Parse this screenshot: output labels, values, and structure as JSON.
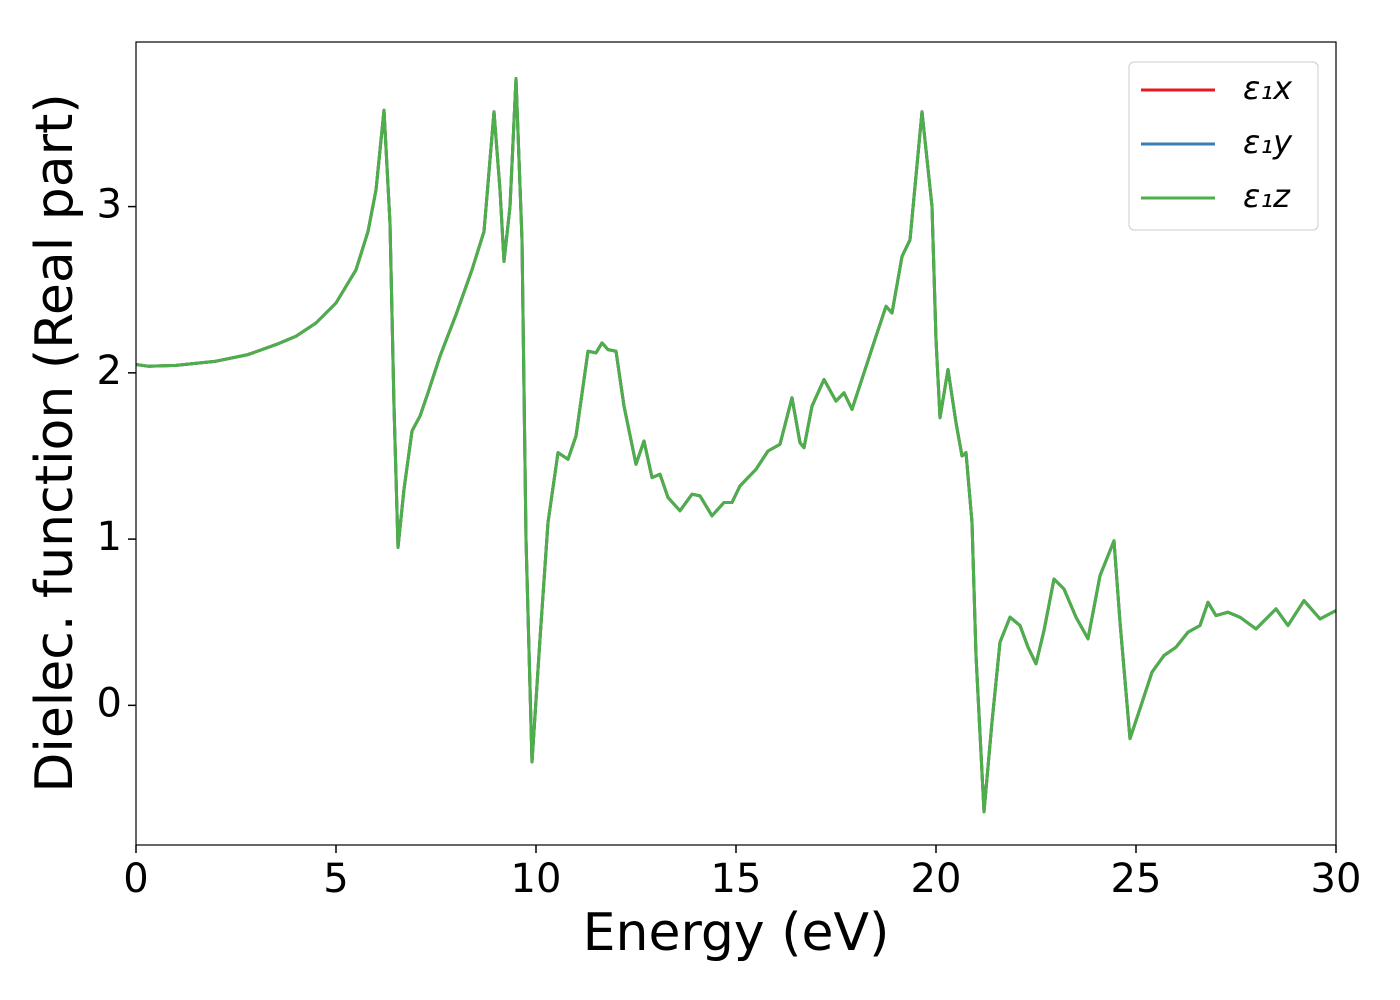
{
  "chart_data": {
    "type": "line",
    "x_label": "Energy (eV)",
    "y_label": "Dielec. function (Real part)",
    "x": [
      0,
      0.3,
      1,
      2,
      2.8,
      3.5,
      4,
      4.5,
      5,
      5.5,
      5.8,
      6.0,
      6.2,
      6.35,
      6.45,
      6.55,
      6.7,
      6.9,
      7.1,
      7.3,
      7.6,
      8.0,
      8.4,
      8.7,
      8.95,
      9.1,
      9.2,
      9.35,
      9.5,
      9.65,
      9.75,
      9.9,
      10.1,
      10.3,
      10.55,
      10.8,
      11.0,
      11.3,
      11.5,
      11.65,
      11.8,
      12.0,
      12.2,
      12.5,
      12.7,
      12.9,
      13.1,
      13.3,
      13.6,
      13.9,
      14.1,
      14.4,
      14.7,
      14.9,
      15.1,
      15.5,
      15.8,
      16.1,
      16.4,
      16.6,
      16.7,
      16.9,
      17.2,
      17.5,
      17.7,
      17.9,
      18.2,
      18.5,
      18.75,
      18.9,
      19.15,
      19.35,
      19.65,
      19.9,
      20.0,
      20.1,
      20.3,
      20.5,
      20.65,
      20.75,
      20.9,
      21.0,
      21.2,
      21.4,
      21.6,
      21.85,
      22.1,
      22.3,
      22.5,
      22.7,
      22.95,
      23.2,
      23.5,
      23.8,
      24.1,
      24.45,
      24.6,
      24.85,
      25.1,
      25.4,
      25.7,
      26.0,
      26.3,
      26.6,
      26.8,
      27.0,
      27.3,
      27.6,
      28.0,
      28.5,
      28.8,
      29.2,
      29.6,
      30.0
    ],
    "series": [
      {
        "name": "ε₁x",
        "color": "#e41a1c",
        "values": [
          2.05,
          2.04,
          2.045,
          2.07,
          2.11,
          2.17,
          2.22,
          2.3,
          2.42,
          2.62,
          2.85,
          3.1,
          3.58,
          2.9,
          1.8,
          0.95,
          1.3,
          1.65,
          1.74,
          1.88,
          2.1,
          2.35,
          2.62,
          2.85,
          3.57,
          3.1,
          2.67,
          3.0,
          3.77,
          2.8,
          1.0,
          -0.34,
          0.4,
          1.1,
          1.52,
          1.48,
          1.62,
          2.13,
          2.12,
          2.18,
          2.14,
          2.13,
          1.8,
          1.45,
          1.59,
          1.37,
          1.39,
          1.25,
          1.17,
          1.27,
          1.26,
          1.14,
          1.22,
          1.22,
          1.32,
          1.42,
          1.53,
          1.57,
          1.85,
          1.58,
          1.55,
          1.8,
          1.96,
          1.83,
          1.88,
          1.78,
          2.0,
          2.22,
          2.4,
          2.36,
          2.7,
          2.8,
          3.57,
          3.0,
          2.2,
          1.73,
          2.02,
          1.7,
          1.5,
          1.52,
          1.1,
          0.3,
          -0.64,
          -0.1,
          0.38,
          0.53,
          0.48,
          0.35,
          0.25,
          0.45,
          0.76,
          0.7,
          0.53,
          0.4,
          0.78,
          0.99,
          0.5,
          -0.2,
          -0.02,
          0.2,
          0.3,
          0.35,
          0.44,
          0.48,
          0.62,
          0.54,
          0.56,
          0.53,
          0.46,
          0.58,
          0.48,
          0.63,
          0.52,
          0.57
        ]
      },
      {
        "name": "ε₁y",
        "color": "#377eb8",
        "values": [
          2.05,
          2.04,
          2.045,
          2.07,
          2.11,
          2.17,
          2.22,
          2.3,
          2.42,
          2.62,
          2.85,
          3.1,
          3.58,
          2.9,
          1.8,
          0.95,
          1.3,
          1.65,
          1.74,
          1.88,
          2.1,
          2.35,
          2.62,
          2.85,
          3.57,
          3.1,
          2.67,
          3.0,
          3.77,
          2.8,
          1.0,
          -0.34,
          0.4,
          1.1,
          1.52,
          1.48,
          1.62,
          2.13,
          2.12,
          2.18,
          2.14,
          2.13,
          1.8,
          1.45,
          1.59,
          1.37,
          1.39,
          1.25,
          1.17,
          1.27,
          1.26,
          1.14,
          1.22,
          1.22,
          1.32,
          1.42,
          1.53,
          1.57,
          1.85,
          1.58,
          1.55,
          1.8,
          1.96,
          1.83,
          1.88,
          1.78,
          2.0,
          2.22,
          2.4,
          2.36,
          2.7,
          2.8,
          3.57,
          3.0,
          2.2,
          1.73,
          2.02,
          1.7,
          1.5,
          1.52,
          1.1,
          0.3,
          -0.64,
          -0.1,
          0.38,
          0.53,
          0.48,
          0.35,
          0.25,
          0.45,
          0.76,
          0.7,
          0.53,
          0.4,
          0.78,
          0.99,
          0.5,
          -0.2,
          -0.02,
          0.2,
          0.3,
          0.35,
          0.44,
          0.48,
          0.62,
          0.54,
          0.56,
          0.53,
          0.46,
          0.58,
          0.48,
          0.63,
          0.52,
          0.57
        ]
      },
      {
        "name": "ε₁z",
        "color": "#4daf4a",
        "values": [
          2.05,
          2.04,
          2.045,
          2.07,
          2.11,
          2.17,
          2.22,
          2.3,
          2.42,
          2.62,
          2.85,
          3.1,
          3.58,
          2.9,
          1.8,
          0.95,
          1.3,
          1.65,
          1.74,
          1.88,
          2.1,
          2.35,
          2.62,
          2.85,
          3.57,
          3.1,
          2.67,
          3.0,
          3.77,
          2.8,
          1.0,
          -0.34,
          0.4,
          1.1,
          1.52,
          1.48,
          1.62,
          2.13,
          2.12,
          2.18,
          2.14,
          2.13,
          1.8,
          1.45,
          1.59,
          1.37,
          1.39,
          1.25,
          1.17,
          1.27,
          1.26,
          1.14,
          1.22,
          1.22,
          1.32,
          1.42,
          1.53,
          1.57,
          1.85,
          1.58,
          1.55,
          1.8,
          1.96,
          1.83,
          1.88,
          1.78,
          2.0,
          2.22,
          2.4,
          2.36,
          2.7,
          2.8,
          3.57,
          3.0,
          2.2,
          1.73,
          2.02,
          1.7,
          1.5,
          1.52,
          1.1,
          0.3,
          -0.64,
          -0.1,
          0.38,
          0.53,
          0.48,
          0.35,
          0.25,
          0.45,
          0.76,
          0.7,
          0.53,
          0.4,
          0.78,
          0.99,
          0.5,
          -0.2,
          -0.02,
          0.2,
          0.3,
          0.35,
          0.44,
          0.48,
          0.62,
          0.54,
          0.56,
          0.53,
          0.46,
          0.58,
          0.48,
          0.63,
          0.52,
          0.57
        ]
      }
    ],
    "xlim": [
      0,
      30
    ],
    "xticks": [
      0,
      5,
      10,
      15,
      20,
      25,
      30
    ],
    "ylim": [
      -0.84,
      3.99
    ],
    "yticks": [
      0,
      1,
      2,
      3
    ],
    "grid": false,
    "legend": "upper right"
  }
}
